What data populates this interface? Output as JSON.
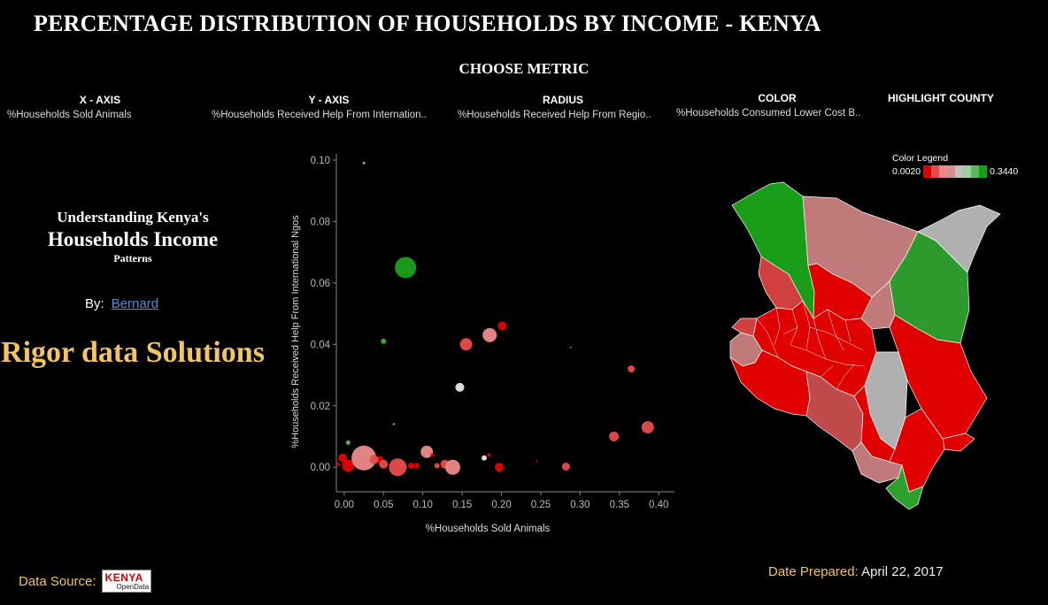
{
  "title": "PERCENTAGE DISTRIBUTION OF HOUSEHOLDS BY INCOME  - KENYA",
  "choose_metric": "CHOOSE METRIC",
  "filters": {
    "x_axis": {
      "label": "X -  AXIS",
      "value": "%Households Sold Animals"
    },
    "y_axis": {
      "label": "Y - AXIS",
      "value": "%Households Received Help From Internation.."
    },
    "radius": {
      "label": "RADIUS",
      "value": "%Households Received Help From Regio.."
    },
    "color": {
      "label": "COLOR",
      "value": "%Households Consumed Lower Cost B.."
    },
    "highlight": {
      "label": "HIGHLIGHT COUNTY",
      "value": ""
    }
  },
  "left_panel": {
    "line1": "Understanding Kenya's",
    "line2": "Households Income",
    "line3": "Patterns",
    "by_label": "By:",
    "author": "Bernard",
    "company": "Rigor data Solutions"
  },
  "legend": {
    "title": "Color Legend",
    "min": "0.0020",
    "max": "0.3440",
    "swatches": [
      "#e00000",
      "#e84b4b",
      "#ec8a8a",
      "#d98f8f",
      "#c0c0c0",
      "#9ed09e",
      "#5cb85c",
      "#1a9e1a"
    ]
  },
  "footer": {
    "source_label": "Data Source:",
    "logo_text_1": "KENYA",
    "logo_text_2": "OpenData",
    "date_label": "Date Prepared:",
    "date_value": "April 22, 2017"
  },
  "chart_data": {
    "type": "scatter",
    "xlabel": "%Households Sold Animals",
    "ylabel": "%Households Received Help From International Ngos",
    "xlim": [
      -0.01,
      0.42
    ],
    "ylim": [
      -0.008,
      0.102
    ],
    "x_ticks": [
      "0.00",
      "0.05",
      "0.10",
      "0.15",
      "0.20",
      "0.25",
      "0.30",
      "0.35",
      "0.40"
    ],
    "x_tick_values": [
      0,
      0.05,
      0.1,
      0.15,
      0.2,
      0.25,
      0.3,
      0.35,
      0.4
    ],
    "y_ticks": [
      "0.00",
      "0.02",
      "0.04",
      "0.06",
      "0.08",
      "0.10"
    ],
    "y_tick_values": [
      0,
      0.02,
      0.04,
      0.06,
      0.08,
      0.1
    ],
    "grid": false,
    "points": [
      {
        "x": 0.025,
        "y": 0.099,
        "r": 1.5,
        "color": "#ec8a8a"
      },
      {
        "x": 0.078,
        "y": 0.065,
        "r": 12,
        "color": "#1aa01a"
      },
      {
        "x": 0.05,
        "y": 0.041,
        "r": 3,
        "color": "#2eb82e"
      },
      {
        "x": 0.155,
        "y": 0.04,
        "r": 7,
        "color": "#e84b4b"
      },
      {
        "x": 0.185,
        "y": 0.043,
        "r": 8,
        "color": "#ec8a8a"
      },
      {
        "x": 0.201,
        "y": 0.046,
        "r": 5,
        "color": "#e00000"
      },
      {
        "x": 0.288,
        "y": 0.039,
        "r": 1,
        "color": "#2eb82e"
      },
      {
        "x": 0.147,
        "y": 0.026,
        "r": 5,
        "color": "#e8e8e8"
      },
      {
        "x": 0.365,
        "y": 0.032,
        "r": 4,
        "color": "#e84b4b"
      },
      {
        "x": 0.386,
        "y": 0.013,
        "r": 7,
        "color": "#e84b4b"
      },
      {
        "x": 0.343,
        "y": 0.01,
        "r": 5.5,
        "color": "#e84b4b"
      },
      {
        "x": 0.063,
        "y": 0.014,
        "r": 1.2,
        "color": "#ec8a8a"
      },
      {
        "x": 0.005,
        "y": 0.008,
        "r": 2.5,
        "color": "#5cb85c"
      },
      {
        "x": -0.002,
        "y": 0.003,
        "r": 5,
        "color": "#e00000"
      },
      {
        "x": 0.005,
        "y": 0.0005,
        "r": 7,
        "color": "#e00000"
      },
      {
        "x": 0.025,
        "y": 0.003,
        "r": 14,
        "color": "#ec8a8a"
      },
      {
        "x": 0.045,
        "y": 0.0025,
        "r": 4,
        "color": "#e00000"
      },
      {
        "x": 0.038,
        "y": 0.0025,
        "r": 5,
        "color": "#e84b4b"
      },
      {
        "x": 0.05,
        "y": 0.001,
        "r": 5,
        "color": "#e84b4b"
      },
      {
        "x": 0.068,
        "y": 0.0,
        "r": 10,
        "color": "#e84b4b"
      },
      {
        "x": 0.085,
        "y": 0.0005,
        "r": 3.5,
        "color": "#e00000"
      },
      {
        "x": 0.092,
        "y": 0.0005,
        "r": 3,
        "color": "#e00000"
      },
      {
        "x": 0.105,
        "y": 0.005,
        "r": 7,
        "color": "#ec8a8a"
      },
      {
        "x": 0.118,
        "y": 0.0005,
        "r": 3,
        "color": "#e84b4b"
      },
      {
        "x": 0.112,
        "y": 0.004,
        "r": 2,
        "color": "#e00000"
      },
      {
        "x": 0.128,
        "y": 0.001,
        "r": 5,
        "color": "#e84b4b"
      },
      {
        "x": 0.138,
        "y": 0.0,
        "r": 8.5,
        "color": "#ec8a8a"
      },
      {
        "x": 0.178,
        "y": 0.003,
        "r": 3,
        "color": "#e8e8e8"
      },
      {
        "x": 0.184,
        "y": 0.004,
        "r": 2,
        "color": "#e00000"
      },
      {
        "x": 0.197,
        "y": 0.0,
        "r": 5,
        "color": "#e00000"
      },
      {
        "x": 0.245,
        "y": 0.002,
        "r": 1,
        "color": "#e00000"
      },
      {
        "x": 0.282,
        "y": 0.0002,
        "r": 4.5,
        "color": "#e84b4b"
      },
      {
        "x": -0.008,
        "y": 0.001,
        "r": 2,
        "color": "#e00000"
      }
    ]
  }
}
